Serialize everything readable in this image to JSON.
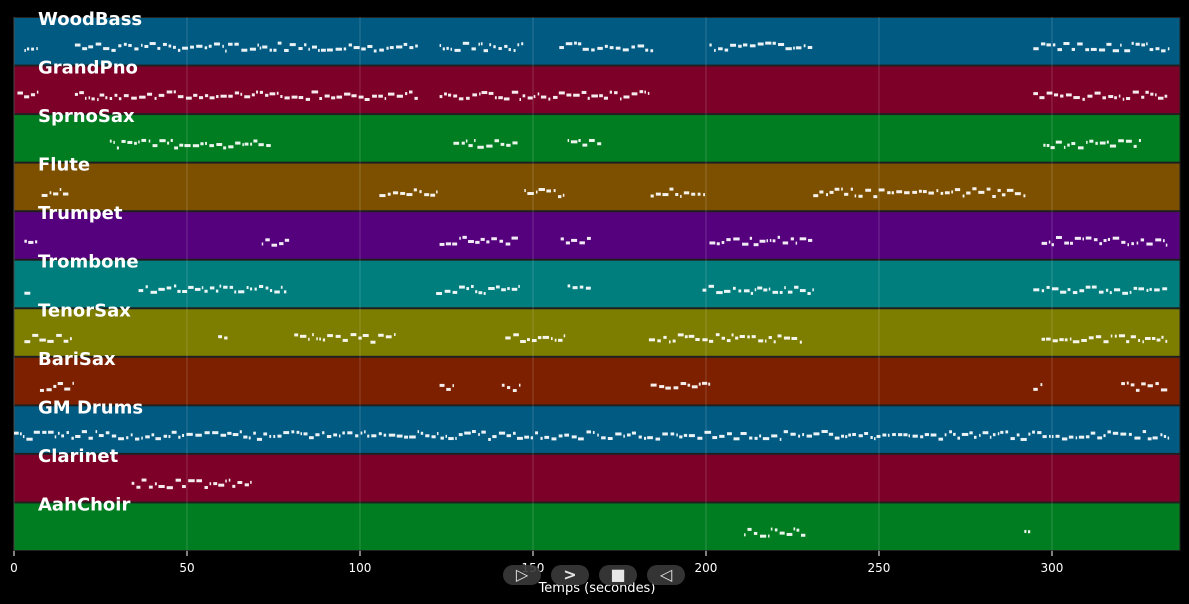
{
  "chart_data": {
    "type": "piano-roll",
    "xlabel": "Temps (secondes)",
    "xlim": [
      0,
      337
    ],
    "xticks": [
      0,
      50,
      100,
      150,
      200,
      250,
      300
    ],
    "grid": true,
    "tracks": [
      {
        "name": "WoodBass",
        "color": "#005a82",
        "regions": [
          [
            3,
            7
          ],
          [
            17.6,
            117
          ],
          [
            123,
            147.5
          ],
          [
            157.6,
            185
          ],
          [
            201,
            231
          ],
          [
            294.6,
            333.6
          ]
        ]
      },
      {
        "name": "GrandPno",
        "color": "#7d0028",
        "regions": [
          [
            1,
            7
          ],
          [
            17.6,
            117
          ],
          [
            123,
            183.5
          ],
          [
            294.6,
            333.6
          ]
        ]
      },
      {
        "name": "SprnoSax",
        "color": "#007d20",
        "regions": [
          [
            27.7,
            74.5
          ],
          [
            127,
            146
          ],
          [
            160,
            170
          ],
          [
            297.5,
            326
          ]
        ]
      },
      {
        "name": "Flute",
        "color": "#7d5000",
        "regions": [
          [
            8,
            16
          ],
          [
            105.6,
            122
          ],
          [
            147.5,
            159
          ],
          [
            184,
            200
          ],
          [
            231,
            292.6
          ]
        ]
      },
      {
        "name": "Trumpet",
        "color": "#55007d",
        "regions": [
          [
            3,
            7
          ],
          [
            71.6,
            80
          ],
          [
            123,
            146
          ],
          [
            158,
            167
          ],
          [
            201,
            231
          ],
          [
            297,
            333.6
          ]
        ]
      },
      {
        "name": "Trombone",
        "color": "#007d7d",
        "regions": [
          [
            3,
            5
          ],
          [
            36,
            79
          ],
          [
            122,
            146
          ],
          [
            160,
            167
          ],
          [
            199,
            231
          ],
          [
            294.6,
            333.6
          ]
        ]
      },
      {
        "name": "TenorSax",
        "color": "#7d7d00",
        "regions": [
          [
            3,
            17
          ],
          [
            59,
            62
          ],
          [
            81,
            110
          ],
          [
            142,
            159
          ],
          [
            183.5,
            228
          ],
          [
            297,
            333.6
          ]
        ]
      },
      {
        "name": "BariSax",
        "color": "#7d2000",
        "regions": [
          [
            7.5,
            17
          ],
          [
            123,
            127
          ],
          [
            141,
            146
          ],
          [
            184,
            201.5
          ],
          [
            294.6,
            297.5
          ],
          [
            320,
            333.6
          ]
        ]
      },
      {
        "name": "GM Drums",
        "color": "#005a82",
        "regions": [
          [
            0,
            333.6
          ]
        ]
      },
      {
        "name": "Clarinet",
        "color": "#7d0028",
        "regions": [
          [
            34,
            68.7
          ]
        ]
      },
      {
        "name": "AahChoir",
        "color": "#007d20",
        "regions": [
          [
            211,
            229
          ],
          [
            292,
            294
          ]
        ]
      }
    ]
  },
  "controls": [
    {
      "name": "play-button",
      "glyph": "▷"
    },
    {
      "name": "next-button",
      "glyph": ">"
    },
    {
      "name": "stop-button",
      "glyph": "■"
    },
    {
      "name": "rewind-button",
      "glyph": "◁"
    }
  ]
}
